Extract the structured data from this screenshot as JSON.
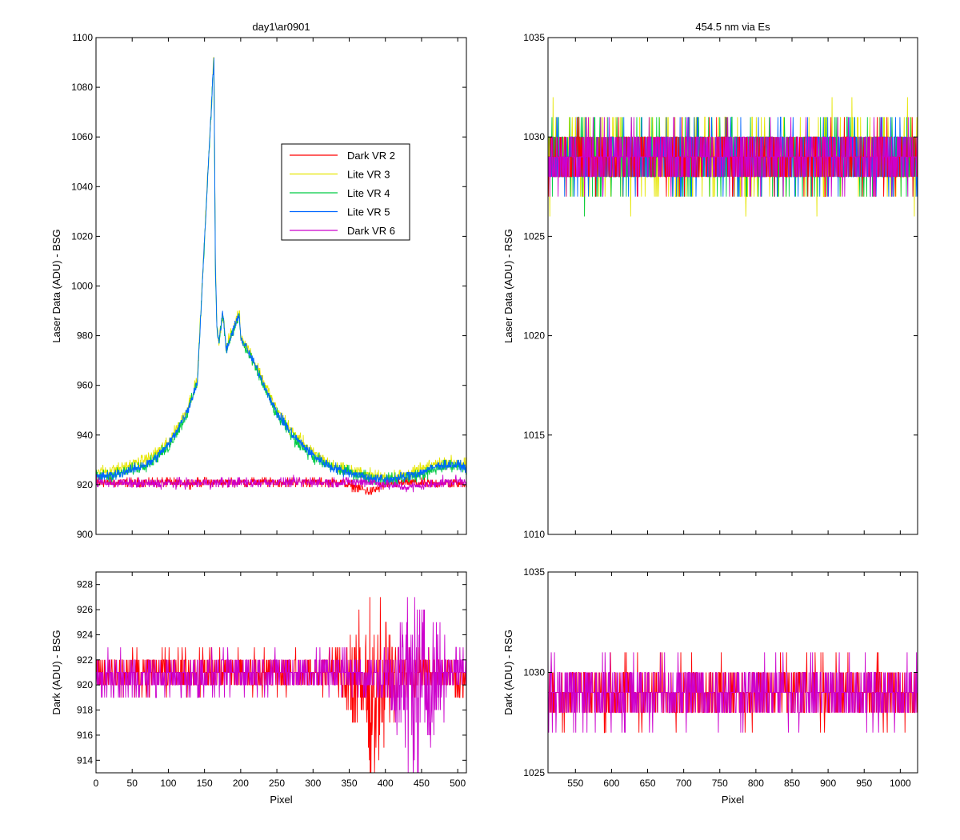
{
  "chart_data": [
    {
      "id": "top-left",
      "type": "line",
      "title": "day1\\ar0901",
      "xlabel": "",
      "ylabel": "Laser Data (ADU) - BSG",
      "xlim": [
        0,
        512
      ],
      "ylim": [
        900,
        1100
      ],
      "xticks": [
        0,
        50,
        100,
        150,
        200,
        250,
        300,
        350,
        400,
        450,
        500
      ],
      "yticks": [
        900,
        920,
        940,
        960,
        980,
        1000,
        1020,
        1040,
        1060,
        1080,
        1100
      ],
      "show_xtick_labels": false,
      "legend": {
        "placement": "upper-center",
        "entries": [
          {
            "label": "Dark VR 2",
            "color": "#ff0000"
          },
          {
            "label": "Lite VR 3",
            "color": "#e6e600"
          },
          {
            "label": "Lite VR 4",
            "color": "#00cc44"
          },
          {
            "label": "Lite VR 5",
            "color": "#0066ff"
          },
          {
            "label": "Dark VR 6",
            "color": "#cc00cc"
          }
        ]
      },
      "series": [
        {
          "color": "#ff0000",
          "x": [
            0,
            50,
            100,
            150,
            200,
            250,
            300,
            340,
            360,
            380,
            400,
            430,
            460,
            512
          ],
          "y": [
            921,
            920.8,
            920.8,
            920.9,
            921,
            921,
            921,
            921,
            919,
            917,
            920,
            921,
            920.5,
            920.5
          ],
          "noise": 1.2
        },
        {
          "color": "#e6e600",
          "x": [
            0,
            25,
            50,
            75,
            100,
            125,
            140,
            163,
            165,
            167,
            170,
            175,
            180,
            198,
            200,
            210,
            225,
            250,
            275,
            300,
            325,
            350,
            375,
            400,
            425,
            450,
            475,
            500,
            512
          ],
          "y": [
            925,
            926,
            928,
            931,
            937,
            950,
            962,
            1093,
            1010,
            985,
            978,
            990,
            975,
            990,
            980,
            975,
            966,
            950,
            940,
            933,
            928,
            926,
            924,
            923,
            924,
            926,
            929,
            929,
            928
          ],
          "noise": 1.5
        },
        {
          "color": "#00cc44",
          "x": [
            0,
            25,
            50,
            75,
            100,
            125,
            140,
            163,
            165,
            167,
            170,
            175,
            180,
            198,
            200,
            210,
            225,
            250,
            275,
            300,
            325,
            350,
            375,
            400,
            425,
            450,
            475,
            500,
            512
          ],
          "y": [
            923,
            924,
            926,
            929,
            935,
            948,
            961,
            1092,
            1008,
            984,
            977,
            989,
            974,
            988,
            979,
            973,
            964,
            948,
            938,
            931,
            927,
            925,
            923,
            922,
            923,
            924,
            927,
            928,
            927
          ],
          "noise": 1.5
        },
        {
          "color": "#0066ff",
          "x": [
            0,
            25,
            50,
            75,
            100,
            125,
            140,
            163,
            165,
            167,
            170,
            175,
            180,
            198,
            200,
            210,
            225,
            250,
            275,
            300,
            325,
            350,
            375,
            400,
            425,
            450,
            475,
            500,
            512
          ],
          "y": [
            923,
            924,
            926,
            929,
            936,
            949,
            961,
            1093,
            1009,
            984,
            977,
            990,
            974,
            989,
            979,
            974,
            965,
            949,
            939,
            932,
            927,
            925,
            923,
            922,
            923,
            925,
            928,
            928,
            927
          ],
          "noise": 1.2
        },
        {
          "color": "#cc00cc",
          "x": [
            0,
            50,
            100,
            150,
            200,
            250,
            300,
            340,
            380,
            400,
            430,
            460,
            480,
            512
          ],
          "y": [
            921,
            920.5,
            920.5,
            920.7,
            920.8,
            921,
            921,
            921,
            921,
            920,
            919,
            920,
            921,
            921.5
          ],
          "noise": 1.2
        }
      ]
    },
    {
      "id": "top-right",
      "type": "line",
      "title": "454.5 nm via Es",
      "xlabel": "",
      "ylabel": "Laser Data (ADU) - RSG",
      "xlim": [
        512,
        1024
      ],
      "ylim": [
        1010,
        1035
      ],
      "xticks": [
        550,
        600,
        650,
        700,
        750,
        800,
        850,
        900,
        950,
        1000
      ],
      "yticks": [
        1010,
        1015,
        1020,
        1025,
        1030,
        1035
      ],
      "show_xtick_labels": false,
      "series": [
        {
          "color": "#e6e600",
          "x": [
            512,
            1024
          ],
          "y": [
            1029,
            1029
          ],
          "noise": 1.3
        },
        {
          "color": "#00cc44",
          "x": [
            512,
            1024
          ],
          "y": [
            1029,
            1029
          ],
          "noise": 1.2
        },
        {
          "color": "#0066ff",
          "x": [
            512,
            1024
          ],
          "y": [
            1029,
            1029
          ],
          "noise": 1.0
        },
        {
          "color": "#ff0000",
          "x": [
            512,
            1024
          ],
          "y": [
            1029,
            1029
          ],
          "noise": 0.9
        },
        {
          "color": "#cc00cc",
          "x": [
            512,
            1024
          ],
          "y": [
            1029,
            1029
          ],
          "noise": 1.0
        }
      ]
    },
    {
      "id": "bottom-left",
      "type": "line",
      "title": "",
      "xlabel": "Pixel",
      "ylabel": "Dark (ADU) - BSG",
      "xlim": [
        0,
        512
      ],
      "ylim": [
        913,
        929
      ],
      "xticks": [
        0,
        50,
        100,
        150,
        200,
        250,
        300,
        350,
        400,
        450,
        500
      ],
      "yticks": [
        914,
        916,
        918,
        920,
        922,
        924,
        926,
        928
      ],
      "show_xtick_labels": true,
      "series": [
        {
          "color": "#ff0000",
          "x": [
            0,
            100,
            200,
            300,
            340,
            360,
            380,
            400,
            430,
            460,
            512
          ],
          "y": [
            921,
            921,
            921,
            921,
            921,
            920,
            919,
            920.5,
            921,
            921,
            920.5
          ],
          "noise": 1.0,
          "noise_profile": {
            "x": [
              0,
              330,
              360,
              390,
              420,
              512
            ],
            "scale": [
              1,
              1,
              3.5,
              4,
              1.2,
              1
            ]
          }
        },
        {
          "color": "#cc00cc",
          "x": [
            0,
            100,
            200,
            300,
            350,
            400,
            450,
            480,
            512
          ],
          "y": [
            920.5,
            920.5,
            921,
            921,
            921,
            920.5,
            920,
            921,
            921.5
          ],
          "noise": 1.0,
          "noise_profile": {
            "x": [
              0,
              390,
              420,
              440,
              460,
              490,
              512
            ],
            "scale": [
              1,
              1,
              3,
              5,
              3.5,
              1.2,
              1
            ]
          }
        }
      ]
    },
    {
      "id": "bottom-right",
      "type": "line",
      "title": "",
      "xlabel": "Pixel",
      "ylabel": "Dark (ADU) - RSG",
      "xlim": [
        512,
        1024
      ],
      "ylim": [
        1025,
        1035
      ],
      "xticks": [
        550,
        600,
        650,
        700,
        750,
        800,
        850,
        900,
        950,
        1000
      ],
      "yticks": [
        1025,
        1030,
        1035
      ],
      "show_xtick_labels": true,
      "series": [
        {
          "color": "#ff0000",
          "x": [
            512,
            1024
          ],
          "y": [
            1029,
            1029
          ],
          "noise": 0.9
        },
        {
          "color": "#cc00cc",
          "x": [
            512,
            1024
          ],
          "y": [
            1029,
            1029
          ],
          "noise": 1.0
        }
      ]
    }
  ]
}
